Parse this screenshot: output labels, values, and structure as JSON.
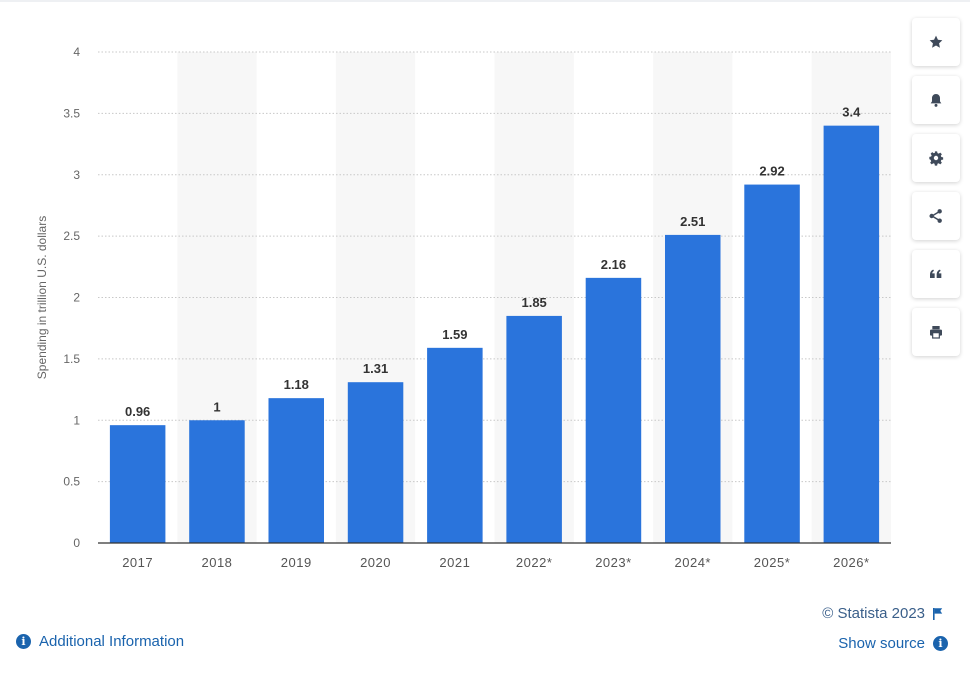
{
  "chart_data": {
    "type": "bar",
    "categories": [
      "2017",
      "2018",
      "2019",
      "2020",
      "2021",
      "2022*",
      "2023*",
      "2024*",
      "2025*",
      "2026*"
    ],
    "values": [
      0.96,
      1,
      1.18,
      1.31,
      1.59,
      1.85,
      2.16,
      2.51,
      2.92,
      3.4
    ],
    "value_labels": [
      "0.96",
      "1",
      "1.18",
      "1.31",
      "1.59",
      "1.85",
      "2.16",
      "2.51",
      "2.92",
      "3.4"
    ],
    "ylabel": "Spending in trillion U.S. dollars",
    "xlabel": "",
    "ylim": [
      0,
      4
    ],
    "yticks": [
      "0",
      "0.5",
      "1",
      "1.5",
      "2",
      "2.5",
      "3",
      "3.5",
      "4"
    ],
    "grid": true,
    "bar_color": "#2a74dc",
    "alternate_band_color": "#f7f7f7"
  },
  "toolbar": {
    "items": [
      {
        "name": "favorite-button",
        "icon": "star-icon"
      },
      {
        "name": "notification-button",
        "icon": "bell-icon"
      },
      {
        "name": "settings-button",
        "icon": "gear-icon"
      },
      {
        "name": "share-button",
        "icon": "share-icon"
      },
      {
        "name": "cite-button",
        "icon": "quote-icon"
      },
      {
        "name": "print-button",
        "icon": "print-icon"
      }
    ],
    "icon_color": "#3f4a5a"
  },
  "footer": {
    "copyright": "© Statista 2023",
    "show_source": "Show source",
    "additional_info": "Additional Information",
    "link_color": "#1a63ad"
  }
}
